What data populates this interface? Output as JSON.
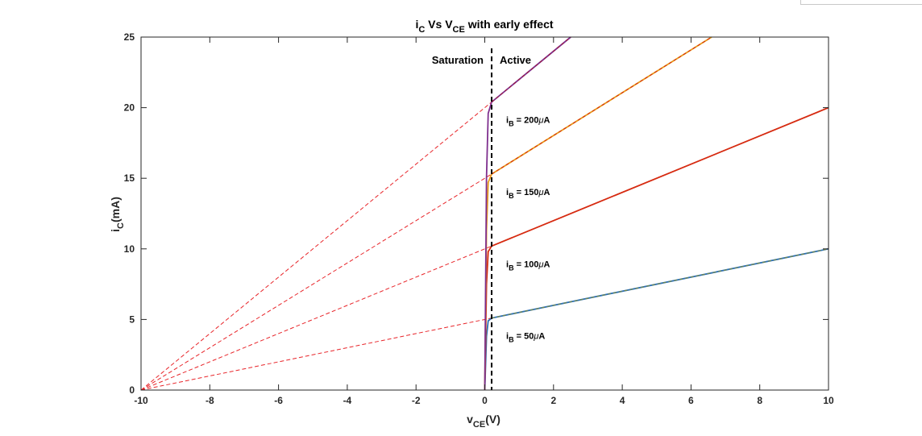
{
  "chart_data": {
    "type": "line",
    "title": {
      "main": "i",
      "sub1": "C",
      "mid": " Vs V",
      "sub2": "CE",
      "tail": " with early effect"
    },
    "xlabel": {
      "main": "v",
      "sub": "CE",
      "tail": "(V)"
    },
    "ylabel": {
      "main": "i",
      "sub": "C",
      "tail": "(mA)"
    },
    "xlim": [
      -10,
      10
    ],
    "ylim": [
      0,
      25
    ],
    "xticks": [
      -10,
      -8,
      -6,
      -4,
      -2,
      0,
      2,
      4,
      6,
      8,
      10
    ],
    "yticks": [
      0,
      5,
      10,
      15,
      20,
      25
    ],
    "grid": false,
    "early_voltage": -10,
    "boundary_vce": 0.2,
    "annotations": {
      "saturation": "Saturation",
      "active": "Active"
    },
    "series": [
      {
        "ib_label": {
          "main": "i",
          "sub": "B",
          "tail": " = 50",
          "unit": "A"
        },
        "color": "#2d6fb3",
        "overlay_color": "#7a8a3a",
        "curve": [
          [
            0,
            0
          ],
          [
            0.02,
            1.5
          ],
          [
            0.05,
            3.8
          ],
          [
            0.1,
            4.9
          ],
          [
            0.2,
            5.1
          ],
          [
            10,
            10
          ]
        ]
      },
      {
        "ib_label": {
          "main": "i",
          "sub": "B",
          "tail": " = 100",
          "unit": "A"
        },
        "color": "#d62a10",
        "curve": [
          [
            0,
            0
          ],
          [
            0.02,
            3.0
          ],
          [
            0.05,
            7.5
          ],
          [
            0.1,
            9.8
          ],
          [
            0.2,
            10.2
          ],
          [
            10,
            20
          ]
        ]
      },
      {
        "ib_label": {
          "main": "i",
          "sub": "B",
          "tail": " = 150",
          "unit": "A"
        },
        "color": "#e89a1a",
        "overlay_color": "#d62a10",
        "curve": [
          [
            0,
            0
          ],
          [
            0.02,
            4.5
          ],
          [
            0.05,
            11.3
          ],
          [
            0.1,
            14.7
          ],
          [
            0.2,
            15.3
          ],
          [
            6.6,
            25
          ]
        ]
      },
      {
        "ib_label": {
          "main": "i",
          "sub": "B",
          "tail": " = 200",
          "unit": "A"
        },
        "color": "#7e2f8e",
        "overlay_color": "#a01a3a",
        "curve": [
          [
            0,
            0
          ],
          [
            0.02,
            6.0
          ],
          [
            0.05,
            15.0
          ],
          [
            0.1,
            19.6
          ],
          [
            0.2,
            20.4
          ],
          [
            2.5,
            25
          ]
        ]
      }
    ],
    "extrapolation_lines": [
      {
        "from": [
          -10,
          0
        ],
        "to": [
          0.2,
          5.1
        ]
      },
      {
        "from": [
          -10,
          0
        ],
        "to": [
          0.2,
          10.2
        ]
      },
      {
        "from": [
          -10,
          0
        ],
        "to": [
          0.2,
          15.3
        ]
      },
      {
        "from": [
          -10,
          0
        ],
        "to": [
          0.2,
          20.4
        ]
      }
    ],
    "extrapolation_color": "#e8252a"
  }
}
